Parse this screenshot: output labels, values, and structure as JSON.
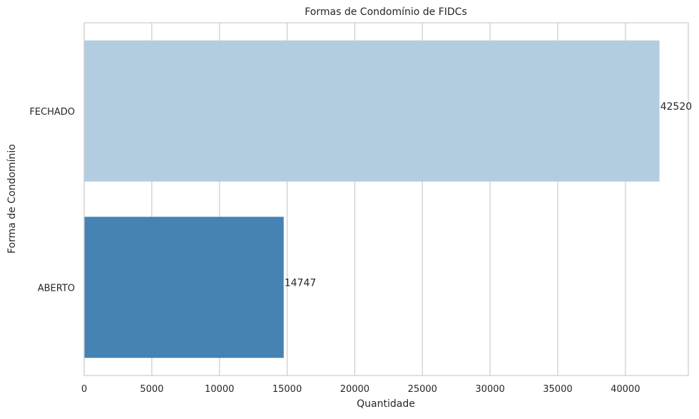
{
  "chart_data": {
    "type": "bar",
    "orientation": "horizontal",
    "title": "Formas de Condomínio de FIDCs",
    "xlabel": "Quantidade",
    "ylabel": "Forma de Condomínio",
    "categories": [
      "FECHADO",
      "ABERTO"
    ],
    "values": [
      42520,
      14747
    ],
    "data_labels": [
      "42520",
      "14747"
    ],
    "bar_colors": [
      "#b3cde0",
      "#4682b4"
    ],
    "xlim": [
      0,
      44650
    ],
    "xticks": [
      0,
      5000,
      10000,
      15000,
      20000,
      25000,
      30000,
      35000,
      40000
    ],
    "xtick_labels": [
      "0",
      "5000",
      "10000",
      "15000",
      "20000",
      "25000",
      "30000",
      "35000",
      "40000"
    ],
    "grid": "vertical",
    "legend": "none"
  }
}
